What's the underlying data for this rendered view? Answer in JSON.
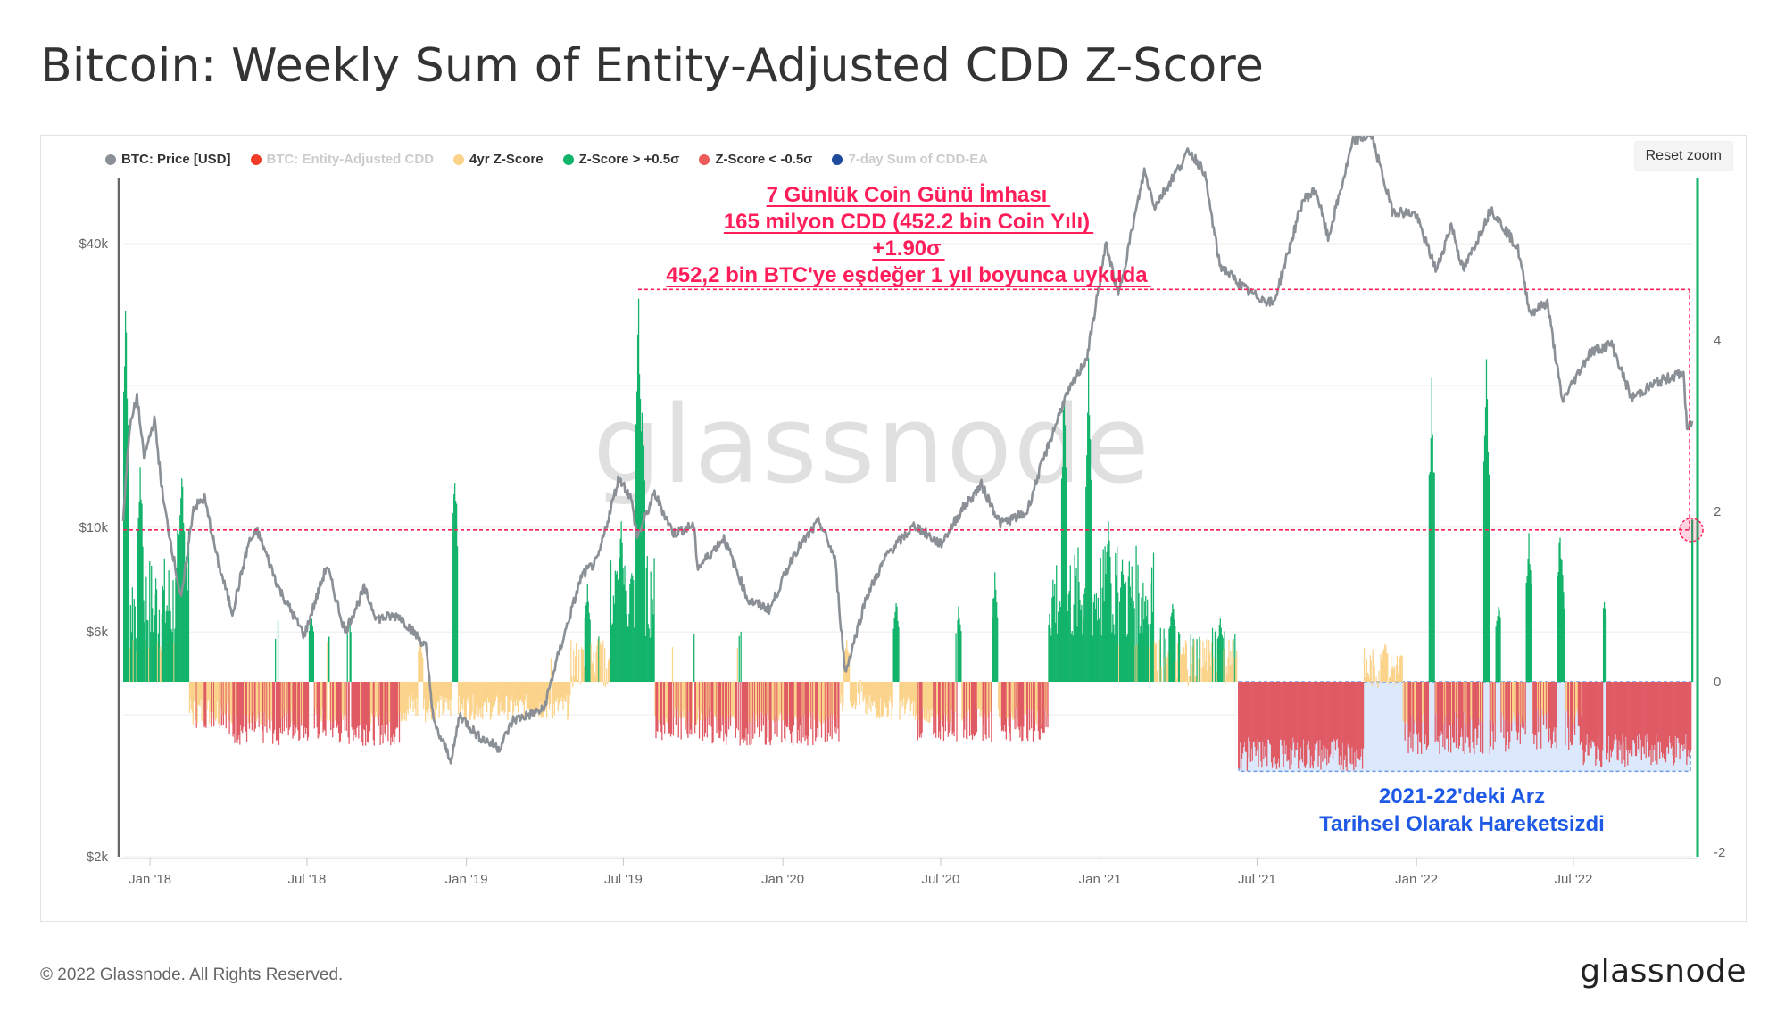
{
  "page": {
    "title": "Bitcoin: Weekly Sum of Entity-Adjusted CDD Z-Score",
    "copyright": "© 2022 Glassnode. All Rights Reserved.",
    "brand": "glassnode",
    "watermark": "glassnode",
    "reset_zoom": "Reset zoom"
  },
  "legend": [
    {
      "label": "BTC: Price [USD]",
      "color": "#8a9095",
      "active": true
    },
    {
      "label": "BTC: Entity-Adjusted CDD",
      "color": "#f03c28",
      "active": false
    },
    {
      "label": "4yr Z-Score",
      "color": "#fbd38b",
      "active": true
    },
    {
      "label": "Z-Score > +0.5σ",
      "color": "#12b36a",
      "active": true
    },
    {
      "label": "Z-Score < -0.5σ",
      "color": "#ec5a5a",
      "active": true
    },
    {
      "label": "7-day Sum of CDD-EA",
      "color": "#1f4a9c",
      "active": false
    }
  ],
  "annotations": {
    "top": [
      "7 Günlük Coin Günü İmhası",
      "165 milyon CDD (452.2 bin Coin Yılı)",
      "+1.90σ",
      "452,2 bin BTC'ye eşdeğer 1 yıl boyunca uykuda"
    ],
    "bottom": [
      "2021-22'deki Arz",
      "Tarihsel Olarak Hareketsizdi"
    ]
  },
  "colors": {
    "price_line": "#8a9095",
    "positive_bar": "#12b36a",
    "negative_bar": "#e05a64",
    "neutral_bar": "#fbd38b",
    "annotation_red": "#ff1e5a",
    "annotation_blue": "#1e5ae6",
    "highlight_fill": "#dce8fb",
    "highlight_border": "#6e9be6"
  },
  "chart_data": {
    "type": "line+bar",
    "title": "Bitcoin: Weekly Sum of Entity-Adjusted CDD Z-Score",
    "x_ticks": [
      "Jan '18",
      "Jul '18",
      "Jan '19",
      "Jul '19",
      "Jan '20",
      "Jul '20",
      "Jan '21",
      "Jul '21",
      "Jan '22",
      "Jul '22"
    ],
    "x_range": [
      "2017-12-01",
      "2022-11-15"
    ],
    "y_left": {
      "scale": "log",
      "ticks": [
        "$2k",
        "$6k",
        "$10k",
        "$40k"
      ],
      "tick_values": [
        2000,
        6000,
        10000,
        40000
      ],
      "range": [
        2000,
        55000
      ]
    },
    "y_right": {
      "scale": "linear",
      "ticks": [
        "-2",
        "0",
        "2",
        "4"
      ],
      "tick_values": [
        -2,
        0,
        2,
        4
      ],
      "range": [
        -2.05,
        5.9
      ]
    },
    "price_series": {
      "name": "BTC: Price [USD]",
      "points": [
        [
          "2017-12-01",
          10500
        ],
        [
          "2017-12-08",
          16000
        ],
        [
          "2017-12-17",
          19000
        ],
        [
          "2017-12-25",
          14000
        ],
        [
          "2018-01-06",
          17000
        ],
        [
          "2018-01-16",
          11500
        ],
        [
          "2018-02-06",
          7000
        ],
        [
          "2018-02-20",
          11000
        ],
        [
          "2018-03-05",
          11500
        ],
        [
          "2018-03-20",
          8500
        ],
        [
          "2018-04-06",
          6600
        ],
        [
          "2018-04-25",
          9300
        ],
        [
          "2018-05-05",
          9800
        ],
        [
          "2018-05-30",
          7400
        ],
        [
          "2018-06-28",
          5900
        ],
        [
          "2018-07-24",
          8300
        ],
        [
          "2018-08-14",
          6000
        ],
        [
          "2018-09-05",
          7400
        ],
        [
          "2018-09-20",
          6400
        ],
        [
          "2018-10-15",
          6500
        ],
        [
          "2018-11-15",
          5600
        ],
        [
          "2018-11-25",
          3800
        ],
        [
          "2018-12-15",
          3200
        ],
        [
          "2018-12-24",
          4000
        ],
        [
          "2019-01-15",
          3600
        ],
        [
          "2019-02-08",
          3400
        ],
        [
          "2019-02-24",
          3900
        ],
        [
          "2019-03-31",
          4100
        ],
        [
          "2019-04-15",
          5200
        ],
        [
          "2019-05-14",
          7900
        ],
        [
          "2019-06-01",
          8500
        ],
        [
          "2019-06-26",
          12800
        ],
        [
          "2019-07-10",
          11500
        ],
        [
          "2019-07-17",
          9500
        ],
        [
          "2019-08-06",
          11800
        ],
        [
          "2019-08-28",
          9700
        ],
        [
          "2019-09-20",
          10100
        ],
        [
          "2019-09-25",
          8200
        ],
        [
          "2019-10-25",
          9500
        ],
        [
          "2019-11-22",
          7000
        ],
        [
          "2019-12-17",
          6700
        ],
        [
          "2020-01-14",
          8800
        ],
        [
          "2020-02-12",
          10300
        ],
        [
          "2020-03-01",
          8600
        ],
        [
          "2020-03-13",
          4900
        ],
        [
          "2020-04-06",
          7100
        ],
        [
          "2020-05-01",
          8800
        ],
        [
          "2020-06-01",
          10100
        ],
        [
          "2020-07-01",
          9200
        ],
        [
          "2020-07-27",
          11000
        ],
        [
          "2020-08-17",
          12300
        ],
        [
          "2020-09-08",
          10200
        ],
        [
          "2020-10-08",
          10700
        ],
        [
          "2020-10-22",
          13000
        ],
        [
          "2020-11-20",
          18500
        ],
        [
          "2020-12-17",
          23000
        ],
        [
          "2021-01-08",
          40000
        ],
        [
          "2021-01-22",
          31000
        ],
        [
          "2021-02-21",
          57000
        ],
        [
          "2021-03-05",
          48000
        ],
        [
          "2021-04-14",
          63000
        ],
        [
          "2021-05-01",
          57000
        ],
        [
          "2021-05-19",
          36000
        ],
        [
          "2021-06-22",
          31500
        ],
        [
          "2021-07-20",
          29800
        ],
        [
          "2021-08-23",
          49500
        ],
        [
          "2021-09-07",
          52000
        ],
        [
          "2021-09-21",
          41000
        ],
        [
          "2021-10-20",
          66000
        ],
        [
          "2021-11-10",
          68000
        ],
        [
          "2021-12-04",
          47000
        ],
        [
          "2021-12-31",
          46200
        ],
        [
          "2022-01-24",
          35000
        ],
        [
          "2022-02-10",
          44000
        ],
        [
          "2022-02-24",
          35000
        ],
        [
          "2022-03-28",
          47500
        ],
        [
          "2022-04-28",
          39000
        ],
        [
          "2022-05-12",
          28500
        ],
        [
          "2022-06-01",
          30000
        ],
        [
          "2022-06-18",
          18500
        ],
        [
          "2022-07-20",
          23500
        ],
        [
          "2022-08-14",
          24500
        ],
        [
          "2022-09-06",
          18800
        ],
        [
          "2022-10-05",
          20300
        ],
        [
          "2022-11-05",
          21300
        ],
        [
          "2022-11-09",
          16000
        ],
        [
          "2022-11-15",
          16800
        ]
      ]
    },
    "zscore_series": {
      "name": "4yr Z-Score",
      "positive_threshold": 0.5,
      "negative_threshold": -0.5,
      "segments": [
        {
          "start": "2017-12-01",
          "end": "2018-01-31",
          "avg": 0.9,
          "amp": 0.6,
          "spikes": [
            [
              "2017-12-03",
              4.7
            ],
            [
              "2017-12-20",
              2.7
            ]
          ]
        },
        {
          "start": "2018-02-01",
          "end": "2018-02-14",
          "avg": 1.4,
          "amp": 0.4,
          "spikes": [
            [
              "2018-02-06",
              2.7
            ]
          ]
        },
        {
          "start": "2018-02-15",
          "end": "2018-03-31",
          "avg": -0.35,
          "amp": 0.2,
          "spikes": []
        },
        {
          "start": "2018-04-01",
          "end": "2018-05-31",
          "avg": -0.55,
          "amp": 0.2,
          "spikes": [
            [
              "2018-05-28",
              0.8
            ]
          ]
        },
        {
          "start": "2018-06-01",
          "end": "2018-07-31",
          "avg": -0.5,
          "amp": 0.2,
          "spikes": [
            [
              "2018-07-05",
              0.9
            ],
            [
              "2018-07-25",
              0.6
            ]
          ]
        },
        {
          "start": "2018-08-01",
          "end": "2018-10-15",
          "avg": -0.55,
          "amp": 0.2,
          "spikes": [
            [
              "2018-08-18",
              0.8
            ]
          ]
        },
        {
          "start": "2018-10-16",
          "end": "2018-11-15",
          "avg": -0.3,
          "amp": 0.2,
          "spikes": [
            [
              "2018-11-08",
              0.5
            ]
          ]
        },
        {
          "start": "2018-11-16",
          "end": "2019-04-30",
          "avg": -0.3,
          "amp": 0.15,
          "spikes": [
            [
              "2018-12-18",
              2.7
            ],
            [
              "2019-04-08",
              0.3
            ]
          ]
        },
        {
          "start": "2019-05-01",
          "end": "2019-06-15",
          "avg": 0.2,
          "amp": 0.3,
          "spikes": [
            [
              "2019-05-20",
              1.2
            ],
            [
              "2019-06-02",
              0.6
            ]
          ]
        },
        {
          "start": "2019-06-16",
          "end": "2019-08-05",
          "avg": 1.0,
          "amp": 0.5,
          "spikes": [
            [
              "2019-06-28",
              1.9
            ],
            [
              "2019-07-18",
              4.7
            ],
            [
              "2019-07-22",
              3.6
            ]
          ]
        },
        {
          "start": "2019-08-06",
          "end": "2019-10-10",
          "avg": -0.5,
          "amp": 0.2,
          "spikes": [
            [
              "2019-08-25",
              0.5
            ],
            [
              "2019-09-20",
              0.6
            ]
          ]
        },
        {
          "start": "2019-10-11",
          "end": "2020-03-05",
          "avg": -0.55,
          "amp": 0.2,
          "spikes": [
            [
              "2019-11-12",
              0.7
            ],
            [
              "2020-02-01",
              0.4
            ]
          ]
        },
        {
          "start": "2020-03-06",
          "end": "2020-04-01",
          "avg": -0.15,
          "amp": 0.2,
          "spikes": [
            [
              "2020-03-14",
              0.5
            ]
          ]
        },
        {
          "start": "2020-04-02",
          "end": "2020-06-01",
          "avg": -0.3,
          "amp": 0.15,
          "spikes": [
            [
              "2020-05-10",
              1.0
            ]
          ]
        },
        {
          "start": "2020-06-02",
          "end": "2020-11-01",
          "avg": -0.5,
          "amp": 0.2,
          "spikes": [
            [
              "2020-07-21",
              0.95
            ],
            [
              "2020-09-01",
              1.3
            ]
          ]
        },
        {
          "start": "2020-11-02",
          "end": "2021-03-05",
          "avg": 1.0,
          "amp": 0.6,
          "spikes": [
            [
              "2020-11-20",
              3.6
            ],
            [
              "2020-12-18",
              3.8
            ],
            [
              "2021-01-10",
              2.0
            ],
            [
              "2021-01-26",
              1.5
            ]
          ]
        },
        {
          "start": "2021-03-06",
          "end": "2021-06-08",
          "avg": 0.3,
          "amp": 0.35,
          "spikes": [
            [
              "2021-03-25",
              1.0
            ],
            [
              "2021-05-19",
              0.8
            ]
          ]
        },
        {
          "start": "2021-06-09",
          "end": "2021-10-31",
          "avg": -0.85,
          "amp": 0.2,
          "spikes": [
            [
              "2021-06-22",
              0.6
            ],
            [
              "2021-07-27",
              0.6
            ]
          ]
        },
        {
          "start": "2021-11-01",
          "end": "2021-12-15",
          "avg": 0.15,
          "amp": 0.25,
          "spikes": [
            [
              "2021-11-25",
              0.5
            ]
          ]
        },
        {
          "start": "2021-12-16",
          "end": "2022-04-30",
          "avg": -0.6,
          "amp": 0.25,
          "spikes": [
            [
              "2022-01-18",
              3.7
            ],
            [
              "2022-03-22",
              3.9
            ],
            [
              "2022-04-05",
              1.0
            ]
          ]
        },
        {
          "start": "2022-05-01",
          "end": "2022-07-10",
          "avg": -0.55,
          "amp": 0.25,
          "spikes": [
            [
              "2022-05-10",
              1.8
            ],
            [
              "2022-06-15",
              1.9
            ],
            [
              "2022-06-18",
              1.2
            ]
          ]
        },
        {
          "start": "2022-07-11",
          "end": "2022-11-13",
          "avg": -0.8,
          "amp": 0.2,
          "spikes": [
            [
              "2022-08-05",
              1.0
            ],
            [
              "2022-10-01",
              0.2
            ]
          ]
        },
        {
          "start": "2022-11-14",
          "end": "2022-11-15",
          "avg": 1.9,
          "amp": 0.0,
          "spikes": [
            [
              "2022-11-14",
              1.9
            ]
          ]
        }
      ]
    },
    "reference_lines": [
      {
        "name": "zscore-level",
        "value": 1.78
      },
      {
        "name": "top-level",
        "value": 4.6
      }
    ],
    "highlight_region": {
      "start": "2021-06-10",
      "end": "2022-11-13",
      "zscore_range": [
        -1.05,
        0.0
      ]
    }
  }
}
